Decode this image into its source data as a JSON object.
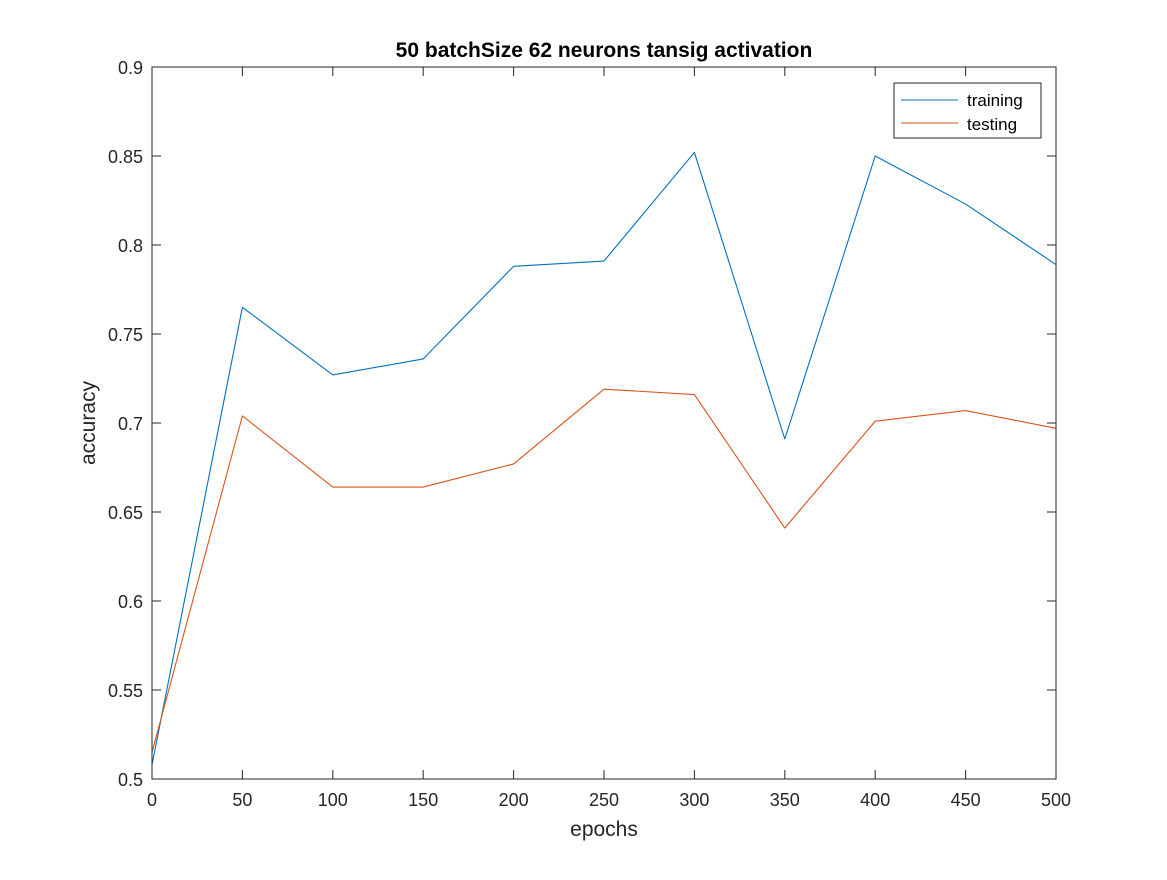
{
  "chart_data": {
    "type": "line",
    "title": "50 batchSize 62 neurons tansig activation",
    "xlabel": "epochs",
    "ylabel": "accuracy",
    "xlim": [
      0,
      500
    ],
    "ylim": [
      0.5,
      0.9
    ],
    "xticks": [
      0,
      50,
      100,
      150,
      200,
      250,
      300,
      350,
      400,
      450,
      500
    ],
    "yticks": [
      0.5,
      0.55,
      0.6,
      0.65,
      0.7,
      0.75,
      0.8,
      0.85,
      0.9
    ],
    "xtick_labels": [
      "0",
      "50",
      "100",
      "150",
      "200",
      "250",
      "300",
      "350",
      "400",
      "450",
      "500"
    ],
    "ytick_labels": [
      "0.5",
      "0.55",
      "0.6",
      "0.65",
      "0.7",
      "0.75",
      "0.8",
      "0.85",
      "0.9"
    ],
    "grid": false,
    "legend_position": "top-right",
    "x": [
      0,
      50,
      100,
      150,
      200,
      250,
      300,
      350,
      400,
      450,
      500
    ],
    "series": [
      {
        "name": "training",
        "color": "#0072BD",
        "values": [
          0.508,
          0.765,
          0.727,
          0.736,
          0.788,
          0.791,
          0.852,
          0.691,
          0.85,
          0.823,
          0.789
        ]
      },
      {
        "name": "testing",
        "color": "#D95319",
        "values": [
          0.515,
          0.704,
          0.664,
          0.664,
          0.677,
          0.719,
          0.716,
          0.641,
          0.701,
          0.707,
          0.697
        ]
      }
    ]
  }
}
